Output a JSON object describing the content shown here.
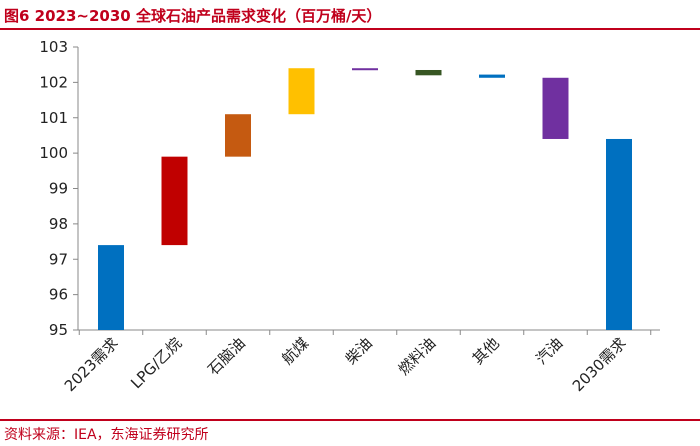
{
  "header": {
    "title": "图6  2023~2030 全球石油产品需求变化（百万桶/天）"
  },
  "footer": {
    "source": "资料来源：IEA，东海证券研究所"
  },
  "chart_data": {
    "type": "bar",
    "title": "图6  2023~2030 全球石油产品需求变化（百万桶/天）",
    "xlabel": "",
    "ylabel": "",
    "ylim": [
      95,
      103
    ],
    "yticks": [
      95,
      96,
      97,
      98,
      99,
      100,
      101,
      102,
      103
    ],
    "categories": [
      "2023需求",
      "LPG/乙烷",
      "石脑油",
      "航煤",
      "柴油",
      "燃料油",
      "其他",
      "汽油",
      "2030需求"
    ],
    "bars": [
      {
        "category": "2023需求",
        "start": 95,
        "end": 97.4,
        "color": "#0070c0"
      },
      {
        "category": "LPG/乙烷",
        "start": 97.4,
        "end": 99.9,
        "color": "#c00000"
      },
      {
        "category": "石脑油",
        "start": 99.9,
        "end": 101.1,
        "color": "#c55a11"
      },
      {
        "category": "航煤",
        "start": 101.1,
        "end": 102.4,
        "color": "#ffc000"
      },
      {
        "category": "柴油",
        "start": 102.37,
        "end": 102.4,
        "color": "#7030a0"
      },
      {
        "category": "燃料油",
        "start": 102.2,
        "end": 102.35,
        "color": "#375623"
      },
      {
        "category": "其他",
        "start": 102.13,
        "end": 102.22,
        "color": "#0070c0"
      },
      {
        "category": "汽油",
        "start": 100.4,
        "end": 102.13,
        "color": "#7030a0"
      },
      {
        "category": "2030需求",
        "start": 95,
        "end": 100.4,
        "color": "#0070c0"
      }
    ],
    "grid": false,
    "legend": "none"
  }
}
